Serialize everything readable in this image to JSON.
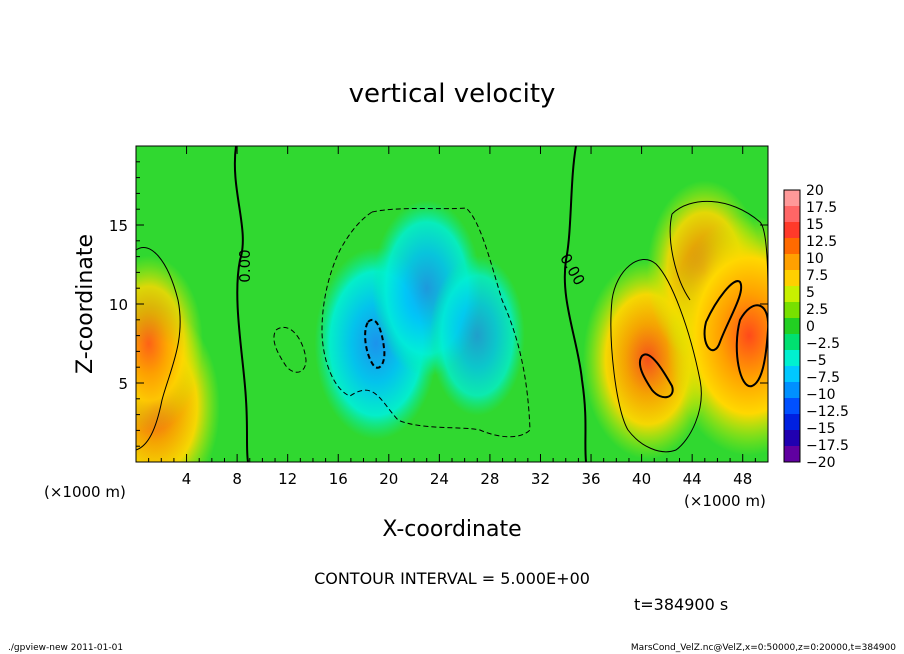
{
  "chart_data": {
    "type": "heatmap",
    "title": "vertical velocity",
    "xlabel": "X-coordinate",
    "ylabel": "Z-coordinate",
    "x_unit_left": "(×1000 m)",
    "x_unit_right": "(×1000 m)",
    "xlim": [
      0,
      50
    ],
    "ylim": [
      0,
      20
    ],
    "x_ticks": [
      "4",
      "8",
      "12",
      "16",
      "20",
      "24",
      "28",
      "32",
      "36",
      "40",
      "44",
      "48"
    ],
    "x_tick_values": [
      4,
      8,
      12,
      16,
      20,
      24,
      28,
      32,
      36,
      40,
      44,
      48
    ],
    "y_ticks": [
      "5",
      "10",
      "15"
    ],
    "y_tick_values": [
      5,
      10,
      15
    ],
    "zero_contour_labels": [
      "0.00",
      "0.00"
    ],
    "contour_interval_text": "CONTOUR INTERVAL = 5.000E+00",
    "time_text": "t=384900 s",
    "colorbar": {
      "labels": [
        "20",
        "17.5",
        "15",
        "12.5",
        "10",
        "7.5",
        "5",
        "2.5",
        "0",
        "−2.5",
        "−5",
        "−7.5",
        "−10",
        "−12.5",
        "−15",
        "−17.5",
        "−20"
      ],
      "colors": [
        "#ff9999",
        "#ff6666",
        "#ff3a2a",
        "#ff6a00",
        "#ffa000",
        "#ffd000",
        "#c8f000",
        "#78e000",
        "#22d022",
        "#00e070",
        "#00f0d0",
        "#00c8ff",
        "#0090ff",
        "#0050ff",
        "#0020e0",
        "#2000b0",
        "#6000a0"
      ]
    },
    "fields": [
      {
        "x": 1.5,
        "z": 3.5,
        "w": 10
      },
      {
        "x": 1.0,
        "z": 7.5,
        "w": 7
      },
      {
        "x": 19.0,
        "z": 7.5,
        "w": -9
      },
      {
        "x": 23.0,
        "z": 11.0,
        "w": -7
      },
      {
        "x": 27.0,
        "z": 8.0,
        "w": -5
      },
      {
        "x": 40.5,
        "z": 6.5,
        "w": 10
      },
      {
        "x": 45.0,
        "z": 12.0,
        "w": 8
      },
      {
        "x": 48.5,
        "z": 8.0,
        "w": 15
      }
    ]
  },
  "footer": {
    "left": "./gpview-new  2011-01-01",
    "right": "MarsCond_VelZ.nc@VelZ,x=0:50000,z=0:20000,t=384900"
  }
}
